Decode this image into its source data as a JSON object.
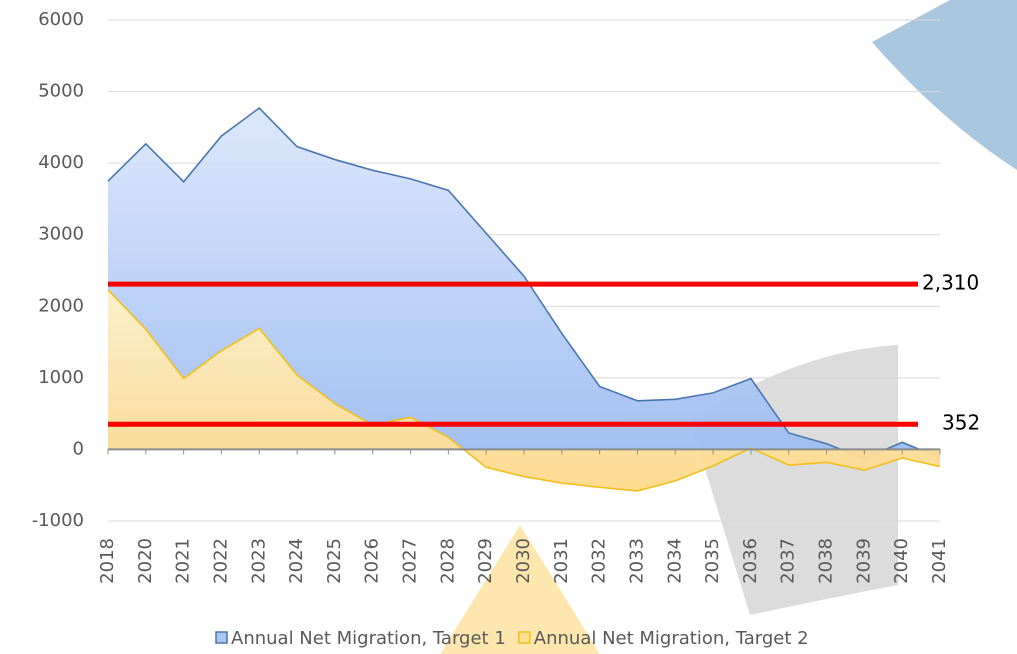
{
  "chart_data": {
    "type": "area",
    "categories": [
      "2018",
      "2020",
      "2021",
      "2022",
      "2023",
      "2024",
      "2025",
      "2026",
      "2027",
      "2028",
      "2029",
      "2030",
      "2031",
      "2032",
      "2033",
      "2034",
      "2035",
      "2036",
      "2037",
      "2038",
      "2039",
      "2040",
      "2041"
    ],
    "series": [
      {
        "name": "Annual Net Migration, Target 1",
        "color": "#4a76b0",
        "fill": "#a9c6f3",
        "values": [
          3750,
          4270,
          3740,
          4380,
          4770,
          4230,
          4050,
          3900,
          3780,
          3620,
          3020,
          2420,
          1620,
          880,
          680,
          700,
          790,
          990,
          230,
          80,
          -130,
          100,
          -120
        ]
      },
      {
        "name": "Annual Net Migration, Target 2",
        "color": "#f2bf1a",
        "fill": "#fddf94",
        "values": [
          2230,
          1680,
          990,
          1380,
          1690,
          1040,
          640,
          340,
          450,
          170,
          -250,
          -380,
          -470,
          -530,
          -580,
          -440,
          -230,
          20,
          -220,
          -180,
          -290,
          -120,
          -240
        ]
      }
    ],
    "reference_lines": [
      {
        "value": 2310,
        "label": "2,310"
      },
      {
        "value": 352,
        "label": "352"
      }
    ],
    "reference_color": "#ff0000",
    "ylim": [
      -1000,
      6000
    ],
    "yticks": [
      -1000,
      0,
      1000,
      2000,
      3000,
      4000,
      5000,
      6000
    ],
    "grid": true,
    "legend": "bottom"
  }
}
